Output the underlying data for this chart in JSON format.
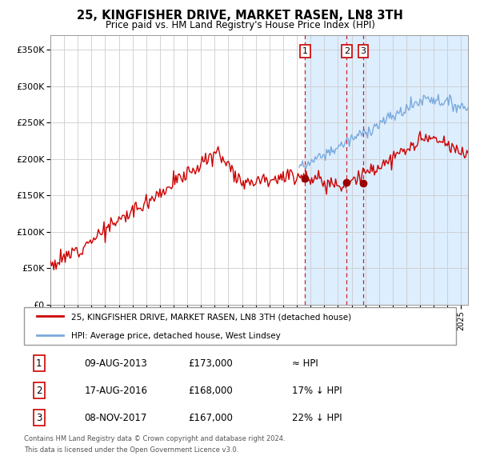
{
  "title": "25, KINGFISHER DRIVE, MARKET RASEN, LN8 3TH",
  "subtitle": "Price paid vs. HM Land Registry's House Price Index (HPI)",
  "legend_line1": "25, KINGFISHER DRIVE, MARKET RASEN, LN8 3TH (detached house)",
  "legend_line2": "HPI: Average price, detached house, West Lindsey",
  "footer_line1": "Contains HM Land Registry data © Crown copyright and database right 2024.",
  "footer_line2": "This data is licensed under the Open Government Licence v3.0.",
  "transactions": [
    {
      "label": "1",
      "date": "09-AUG-2013",
      "price": 173000,
      "hpi_note": "≈ HPI",
      "year": 2013.6
    },
    {
      "label": "2",
      "date": "17-AUG-2016",
      "price": 168000,
      "hpi_note": "17% ↓ HPI",
      "year": 2016.63
    },
    {
      "label": "3",
      "date": "08-NOV-2017",
      "price": 167000,
      "hpi_note": "22% ↓ HPI",
      "year": 2017.85
    }
  ],
  "red_line_color": "#cc0000",
  "blue_line_color": "#7aaadd",
  "marker_color": "#990000",
  "shade_color": "#ddeeff",
  "grid_color": "#cccccc",
  "ylim": [
    0,
    370000
  ],
  "xlim_start": 1995.0,
  "xlim_end": 2025.5,
  "background_color": "#ffffff",
  "yticks": [
    0,
    50000,
    100000,
    150000,
    200000,
    250000,
    300000,
    350000
  ],
  "ylabels": [
    "£0",
    "£50K",
    "£100K",
    "£150K",
    "£200K",
    "£250K",
    "£300K",
    "£350K"
  ]
}
